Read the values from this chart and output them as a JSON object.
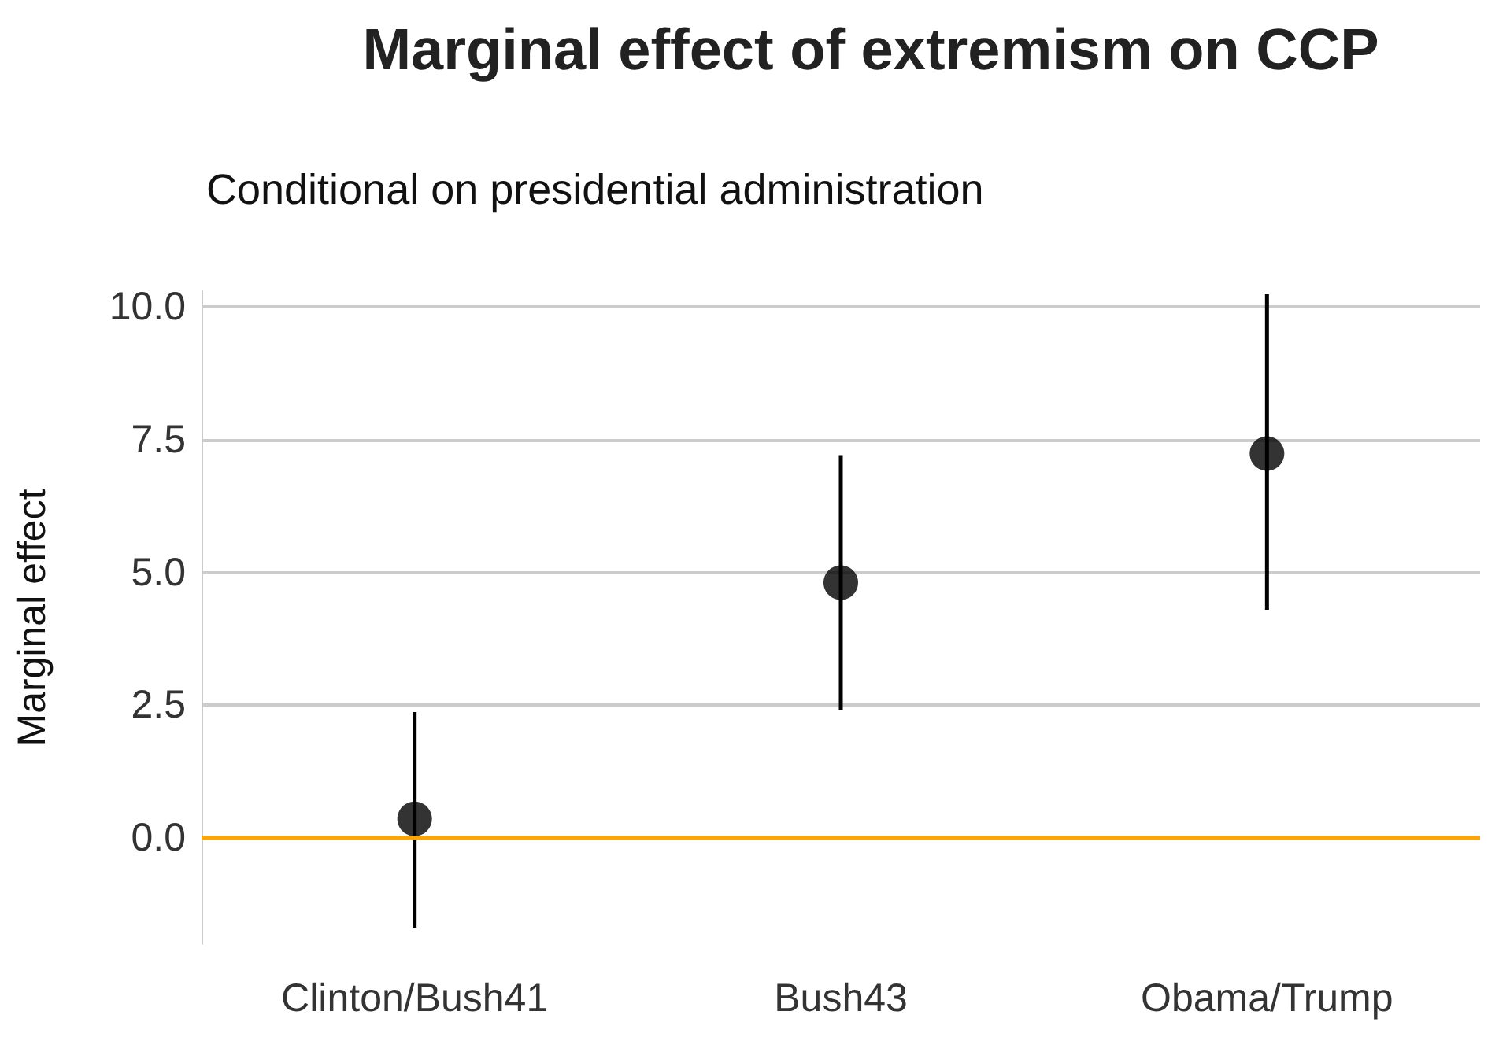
{
  "chart_data": {
    "type": "scatter",
    "title": "Marginal effect of extremism on CCP",
    "subtitle": "Conditional on presidential administration",
    "ylabel": "Marginal effect",
    "categories": [
      "Clinton/Bush41",
      "Bush43",
      "Obama/Trump"
    ],
    "values": [
      0.36,
      4.81,
      7.24
    ],
    "errors": [
      [
        -1.69,
        2.37
      ],
      [
        2.4,
        7.21
      ],
      [
        4.3,
        10.24
      ]
    ],
    "color": "#000000",
    "marker": "circle",
    "ylim": [
      -2,
      10.3
    ],
    "yticks": [
      {
        "value": 0,
        "label": "0.0"
      },
      2.5,
      {
        "value": 5,
        "label": "5.0"
      },
      7.5,
      {
        "value": 10,
        "label": "10.0"
      }
    ],
    "grid": "y",
    "ref_lines": [
      {
        "axis": "y",
        "value": 0,
        "color": "#ffa500"
      }
    ]
  }
}
